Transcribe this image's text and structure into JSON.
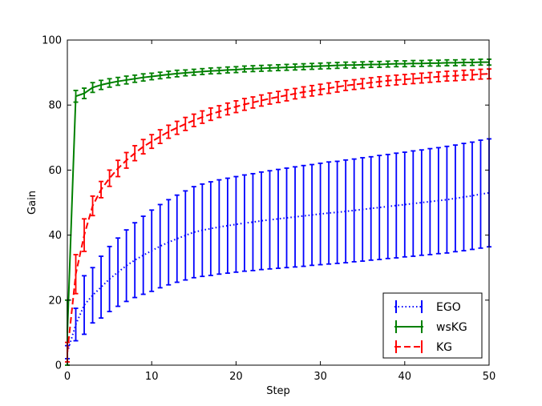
{
  "chart_data": {
    "type": "line",
    "title": "",
    "xlabel": "Step",
    "ylabel": "Gain",
    "xlim": [
      0,
      50
    ],
    "ylim": [
      0,
      100
    ],
    "xticks": [
      "0",
      "10",
      "20",
      "30",
      "40",
      "50"
    ],
    "yticks": [
      "0",
      "20",
      "40",
      "60",
      "80",
      "100"
    ],
    "grid": false,
    "legend": {
      "placement": "bottom-right",
      "entries": [
        "EGO",
        "wsKG",
        "KG"
      ]
    },
    "x": [
      0,
      1,
      2,
      3,
      4,
      5,
      6,
      7,
      8,
      9,
      10,
      11,
      12,
      13,
      14,
      15,
      16,
      17,
      18,
      19,
      20,
      21,
      22,
      23,
      24,
      25,
      26,
      27,
      28,
      29,
      30,
      31,
      32,
      33,
      34,
      35,
      36,
      37,
      38,
      39,
      40,
      41,
      42,
      43,
      44,
      45,
      46,
      47,
      48,
      49,
      50
    ],
    "series": [
      {
        "name": "EGO",
        "color": "#0000ff",
        "style": "dotted",
        "values": [
          4.0,
          12.5,
          18.5,
          21.5,
          24.0,
          26.5,
          28.6,
          30.6,
          32.3,
          33.8,
          35.2,
          36.6,
          37.8,
          38.9,
          39.9,
          40.9,
          41.5,
          42.0,
          42.5,
          42.9,
          43.3,
          43.7,
          44.0,
          44.4,
          44.7,
          45.0,
          45.3,
          45.6,
          45.9,
          46.2,
          46.5,
          46.8,
          47.0,
          47.3,
          47.6,
          47.9,
          48.2,
          48.5,
          48.8,
          49.1,
          49.4,
          49.7,
          50.0,
          50.3,
          50.6,
          50.9,
          51.3,
          51.7,
          52.1,
          52.6,
          53.0
        ],
        "errors": [
          2.0,
          5.0,
          9.0,
          8.5,
          9.5,
          10.0,
          10.5,
          11.0,
          11.5,
          12.0,
          12.5,
          12.8,
          13.1,
          13.4,
          13.7,
          14.0,
          14.2,
          14.4,
          14.5,
          14.6,
          14.7,
          14.8,
          14.9,
          15.0,
          15.1,
          15.2,
          15.3,
          15.4,
          15.5,
          15.5,
          15.6,
          15.7,
          15.7,
          15.8,
          15.8,
          15.9,
          15.9,
          16.0,
          16.0,
          16.1,
          16.1,
          16.2,
          16.2,
          16.3,
          16.3,
          16.4,
          16.4,
          16.5,
          16.5,
          16.6,
          16.6
        ]
      },
      {
        "name": "wsKG",
        "color": "#008000",
        "style": "solid",
        "values": [
          10.0,
          82.7,
          83.6,
          85.4,
          86.2,
          86.8,
          87.3,
          87.7,
          88.1,
          88.5,
          88.8,
          89.1,
          89.4,
          89.7,
          89.9,
          90.1,
          90.3,
          90.5,
          90.6,
          90.8,
          90.9,
          91.1,
          91.2,
          91.3,
          91.4,
          91.5,
          91.6,
          91.7,
          91.8,
          91.9,
          92.0,
          92.1,
          92.2,
          92.3,
          92.3,
          92.4,
          92.5,
          92.5,
          92.6,
          92.7,
          92.7,
          92.8,
          92.8,
          92.9,
          92.9,
          93.0,
          93.0,
          93.1,
          93.1,
          93.2,
          93.2
        ],
        "errors": [
          10.0,
          1.8,
          1.6,
          1.5,
          1.4,
          1.3,
          1.2,
          1.2,
          1.1,
          1.1,
          1.0,
          1.0,
          1.0,
          1.0,
          0.9,
          0.9,
          0.9,
          0.9,
          0.9,
          0.9,
          0.9,
          0.9,
          0.9,
          0.9,
          0.9,
          0.9,
          0.9,
          0.9,
          0.9,
          0.9,
          0.9,
          0.9,
          0.9,
          0.9,
          0.9,
          0.9,
          0.9,
          0.9,
          0.9,
          0.9,
          0.9,
          0.9,
          0.9,
          0.9,
          0.9,
          0.9,
          0.9,
          0.9,
          0.9,
          0.9,
          0.9
        ]
      },
      {
        "name": "KG",
        "color": "#ff0000",
        "style": "dashed",
        "values": [
          4.0,
          28.0,
          40.0,
          49.0,
          54.0,
          57.5,
          60.5,
          63.0,
          65.2,
          67.2,
          68.8,
          70.3,
          71.8,
          73.0,
          74.2,
          75.3,
          76.3,
          77.2,
          78.0,
          78.8,
          79.5,
          80.2,
          80.8,
          81.4,
          82.0,
          82.5,
          83.0,
          83.5,
          84.0,
          84.4,
          84.8,
          85.2,
          85.6,
          86.0,
          86.3,
          86.6,
          86.9,
          87.2,
          87.5,
          87.7,
          87.9,
          88.1,
          88.3,
          88.5,
          88.7,
          88.9,
          89.0,
          89.2,
          89.3,
          89.5,
          89.6
        ],
        "errors": [
          3.0,
          6.0,
          5.0,
          3.0,
          2.5,
          2.5,
          2.5,
          2.4,
          2.3,
          2.2,
          2.1,
          2.1,
          2.0,
          2.0,
          2.0,
          1.9,
          1.9,
          1.9,
          1.8,
          1.8,
          1.8,
          1.8,
          1.7,
          1.7,
          1.7,
          1.7,
          1.7,
          1.6,
          1.6,
          1.6,
          1.6,
          1.6,
          1.6,
          1.5,
          1.5,
          1.5,
          1.5,
          1.5,
          1.5,
          1.5,
          1.5,
          1.5,
          1.5,
          1.5,
          1.5,
          1.5,
          1.5,
          1.5,
          1.5,
          1.5,
          1.5
        ]
      }
    ]
  }
}
